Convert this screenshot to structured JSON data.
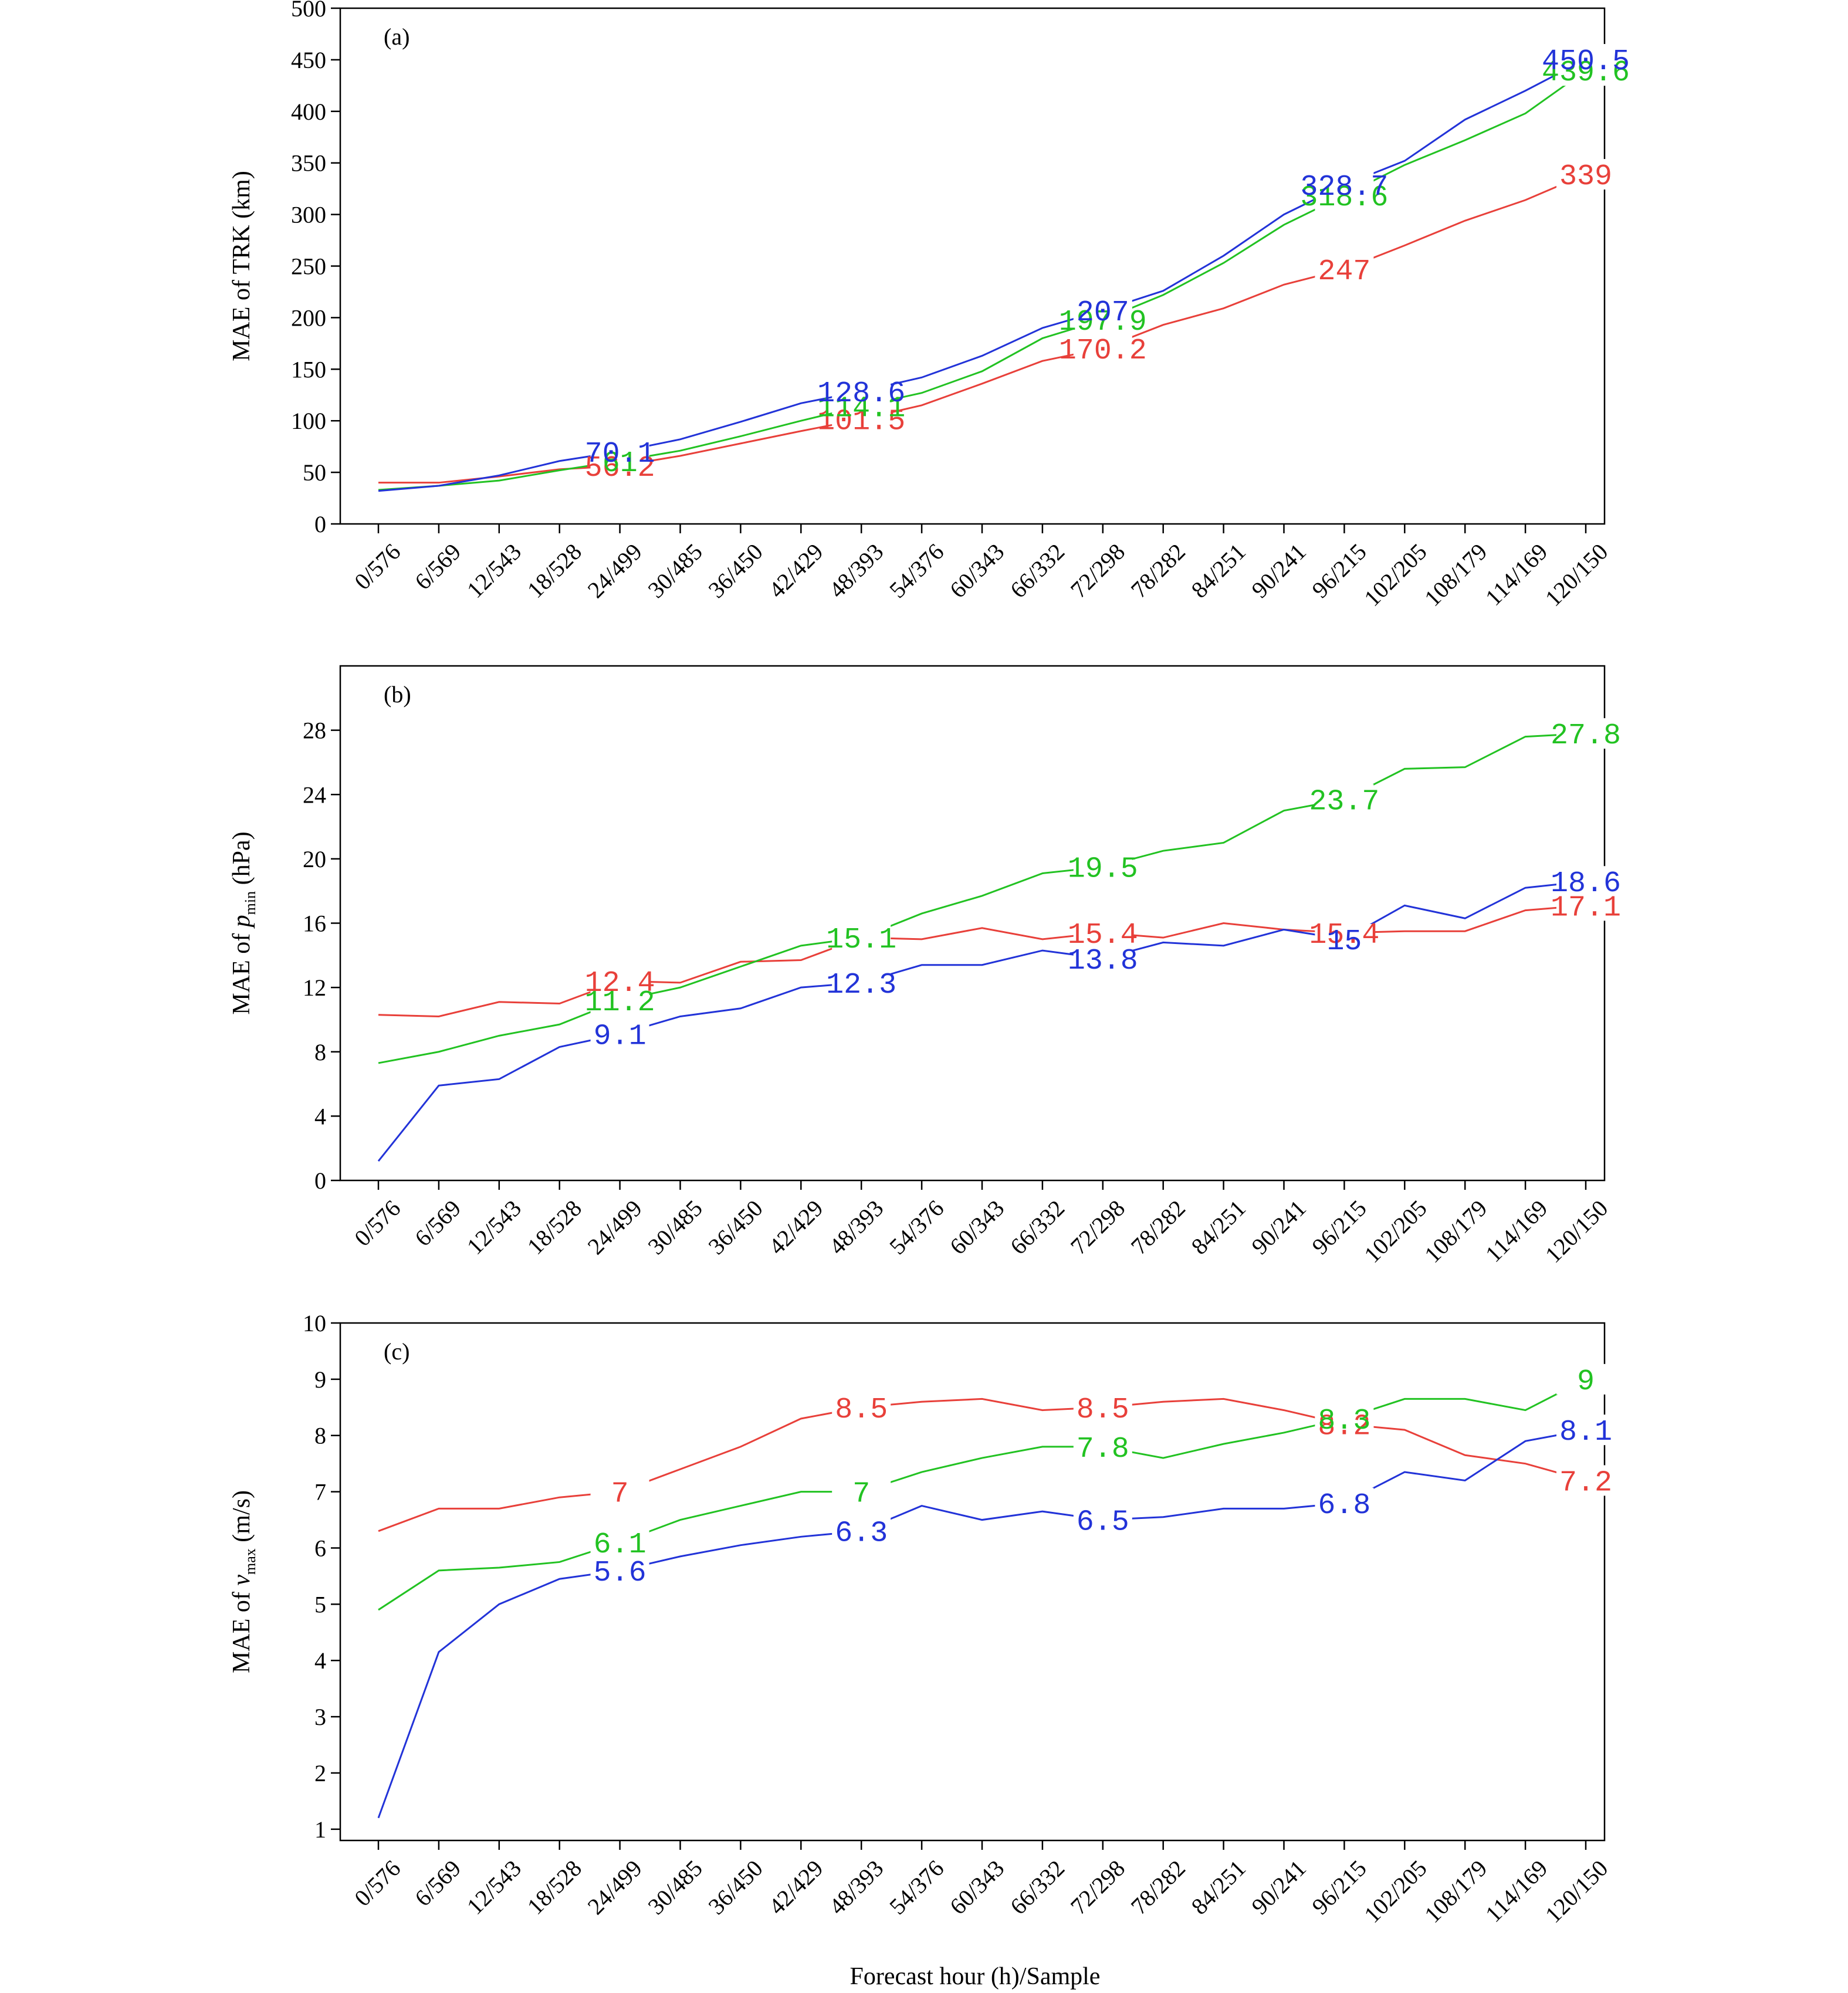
{
  "figure": {
    "xlabel": "Forecast hour (h)/Sample",
    "x_categories": [
      "0/576",
      "6/569",
      "12/543",
      "18/528",
      "24/499",
      "30/485",
      "36/450",
      "42/429",
      "48/393",
      "54/376",
      "60/343",
      "66/332",
      "72/298",
      "78/282",
      "84/251",
      "90/241",
      "96/215",
      "102/205",
      "108/179",
      "114/169",
      "120/150"
    ],
    "series_colors": {
      "red": "#e8403a",
      "green": "#22c222",
      "blue": "#2233d8"
    }
  },
  "chart_data": [
    {
      "type": "line",
      "panel_label": "(a)",
      "ylabel": "MAE of TRK (km)",
      "ylim": [
        0,
        500
      ],
      "yticks": [
        0,
        50,
        100,
        150,
        200,
        250,
        300,
        350,
        400,
        450,
        500
      ],
      "series": [
        {
          "name": "red",
          "color": "#e8403a",
          "values": [
            40,
            40,
            46,
            53,
            56.2,
            66,
            78,
            90,
            101.5,
            115,
            136,
            158,
            170.2,
            193,
            209,
            232,
            247,
            270,
            294,
            314,
            339
          ],
          "labels": [
            {
              "index": 4,
              "text": "56.2"
            },
            {
              "index": 8,
              "text": "101.5"
            },
            {
              "index": 12,
              "text": "170.2"
            },
            {
              "index": 16,
              "text": "247"
            },
            {
              "index": 20,
              "text": "339"
            }
          ]
        },
        {
          "name": "green",
          "color": "#22c222",
          "values": [
            33,
            37,
            42,
            52,
            61,
            71,
            85,
            100,
            114.1,
            127,
            148,
            180,
            197.9,
            222,
            253,
            290,
            318.6,
            348,
            372,
            398,
            439.6
          ],
          "labels": [
            {
              "index": 4,
              "text": "61"
            },
            {
              "index": 8,
              "text": "114.1"
            },
            {
              "index": 12,
              "text": "197.9"
            },
            {
              "index": 16,
              "text": "318.6"
            },
            {
              "index": 20,
              "text": "439.6"
            }
          ]
        },
        {
          "name": "blue",
          "color": "#2233d8",
          "values": [
            32,
            37,
            47,
            61,
            70.1,
            82,
            99,
            117,
            128.6,
            142,
            163,
            190,
            207,
            226,
            260,
            300,
            328.7,
            352,
            392,
            420,
            450.5
          ],
          "labels": [
            {
              "index": 4,
              "text": "70.1"
            },
            {
              "index": 8,
              "text": "128.6"
            },
            {
              "index": 12,
              "text": "207"
            },
            {
              "index": 16,
              "text": "328.7"
            },
            {
              "index": 20,
              "text": "450.5"
            }
          ]
        }
      ]
    },
    {
      "type": "line",
      "panel_label": "(b)",
      "ylabel": "MAE of p",
      "ylabel_subscript": "min",
      "ylabel_unit": "(hPa)",
      "ylim": [
        0,
        32
      ],
      "yticks": [
        0,
        4,
        8,
        12,
        16,
        20,
        24,
        28
      ],
      "series": [
        {
          "name": "red",
          "color": "#e8403a",
          "values": [
            10.3,
            10.2,
            11.1,
            11.0,
            12.4,
            12.3,
            13.6,
            13.7,
            15.1,
            15.0,
            15.7,
            15.0,
            15.4,
            15.1,
            16.0,
            15.6,
            15.4,
            15.5,
            15.5,
            16.8,
            17.1
          ],
          "labels": [
            {
              "index": 4,
              "text": "12.4"
            },
            {
              "index": 12,
              "text": "15.4"
            },
            {
              "index": 16,
              "text": "15.4"
            },
            {
              "index": 20,
              "text": "17.1"
            }
          ]
        },
        {
          "name": "green",
          "color": "#22c222",
          "values": [
            7.3,
            8.0,
            9.0,
            9.7,
            11.2,
            12.0,
            13.3,
            14.6,
            15.1,
            16.6,
            17.7,
            19.1,
            19.5,
            20.5,
            21.0,
            23.0,
            23.7,
            25.6,
            25.7,
            27.6,
            27.8
          ],
          "labels": [
            {
              "index": 4,
              "text": "11.2"
            },
            {
              "index": 8,
              "text": "15.1"
            },
            {
              "index": 12,
              "text": "19.5"
            },
            {
              "index": 16,
              "text": "23.7"
            },
            {
              "index": 20,
              "text": "27.8"
            }
          ]
        },
        {
          "name": "blue",
          "color": "#2233d8",
          "values": [
            1.2,
            5.9,
            6.3,
            8.3,
            9.1,
            10.2,
            10.7,
            12.0,
            12.3,
            13.4,
            13.4,
            14.3,
            13.8,
            14.8,
            14.6,
            15.6,
            15.0,
            17.1,
            16.3,
            18.2,
            18.6
          ],
          "labels": [
            {
              "index": 4,
              "text": "9.1"
            },
            {
              "index": 8,
              "text": "12.3"
            },
            {
              "index": 12,
              "text": "13.8"
            },
            {
              "index": 16,
              "text": "15"
            },
            {
              "index": 20,
              "text": "18.6"
            }
          ]
        }
      ]
    },
    {
      "type": "line",
      "panel_label": "(c)",
      "ylabel": "MAE of v",
      "ylabel_subscript": "max",
      "ylabel_unit": "(m/s)",
      "ylim": [
        0.8,
        10
      ],
      "yticks": [
        1,
        2,
        3,
        4,
        5,
        6,
        7,
        8,
        9,
        10
      ],
      "series": [
        {
          "name": "red",
          "color": "#e8403a",
          "values": [
            6.3,
            6.7,
            6.7,
            6.9,
            7.0,
            7.4,
            7.8,
            8.3,
            8.5,
            8.6,
            8.65,
            8.45,
            8.5,
            8.6,
            8.65,
            8.45,
            8.2,
            8.1,
            7.65,
            7.5,
            7.2
          ],
          "labels": [
            {
              "index": 4,
              "text": "7"
            },
            {
              "index": 8,
              "text": "8.5"
            },
            {
              "index": 12,
              "text": "8.5"
            },
            {
              "index": 16,
              "text": "8.2"
            },
            {
              "index": 20,
              "text": "7.2"
            }
          ]
        },
        {
          "name": "green",
          "color": "#22c222",
          "values": [
            4.9,
            5.6,
            5.65,
            5.75,
            6.1,
            6.5,
            6.75,
            7.0,
            7.0,
            7.35,
            7.6,
            7.8,
            7.8,
            7.6,
            7.85,
            8.05,
            8.3,
            8.65,
            8.65,
            8.45,
            9.0
          ],
          "labels": [
            {
              "index": 4,
              "text": "6.1"
            },
            {
              "index": 8,
              "text": "7"
            },
            {
              "index": 12,
              "text": "7.8"
            },
            {
              "index": 16,
              "text": "8.3"
            },
            {
              "index": 20,
              "text": "9"
            }
          ]
        },
        {
          "name": "blue",
          "color": "#2233d8",
          "values": [
            1.2,
            4.15,
            5.0,
            5.45,
            5.6,
            5.85,
            6.05,
            6.2,
            6.3,
            6.75,
            6.5,
            6.65,
            6.5,
            6.55,
            6.7,
            6.7,
            6.8,
            7.35,
            7.2,
            7.9,
            8.1
          ],
          "labels": [
            {
              "index": 4,
              "text": "5.6"
            },
            {
              "index": 8,
              "text": "6.3"
            },
            {
              "index": 12,
              "text": "6.5"
            },
            {
              "index": 16,
              "text": "6.8"
            },
            {
              "index": 20,
              "text": "8.1"
            }
          ]
        }
      ]
    }
  ]
}
